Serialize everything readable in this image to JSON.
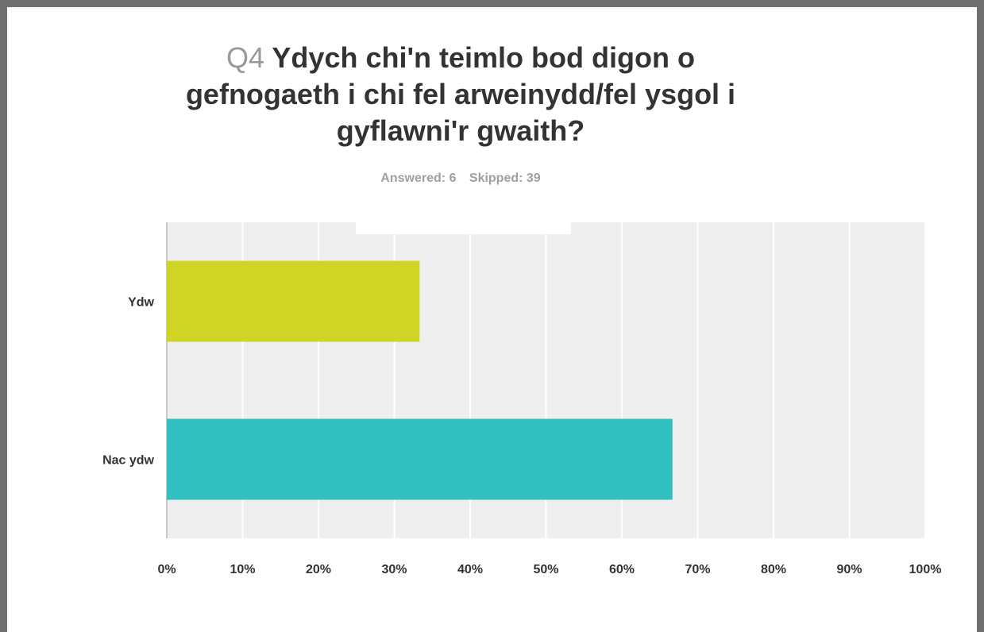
{
  "question": {
    "number": "Q4",
    "text": "Ydych chi'n teimlo bod digon o gefnogaeth i chi fel arweinydd/fel ysgol i gyflawni'r gwaith?",
    "answered": "Answered: 6",
    "skipped": "Skipped: 39"
  },
  "chart_data": {
    "type": "bar",
    "orientation": "horizontal",
    "categories": [
      "Ydw",
      "Nac ydw"
    ],
    "values": [
      33.33,
      66.67
    ],
    "colors": [
      "#d0d424",
      "#32bfc0"
    ],
    "xlim": [
      0,
      100
    ],
    "xticks": [
      "0%",
      "10%",
      "20%",
      "30%",
      "40%",
      "50%",
      "60%",
      "70%",
      "80%",
      "90%",
      "100%"
    ],
    "grid": true,
    "plot_background": "#efefef"
  }
}
